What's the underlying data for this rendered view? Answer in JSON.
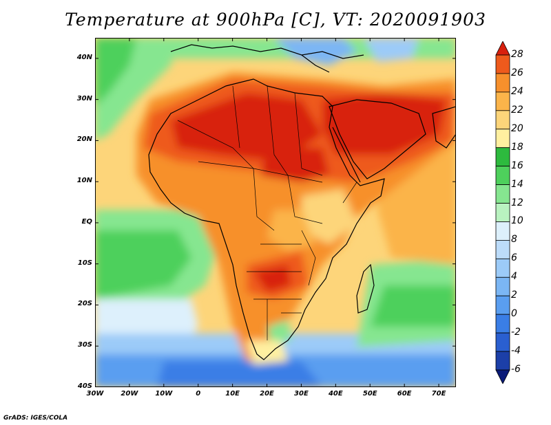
{
  "title": "Temperature at 900hPa [C], VT: 2020091903",
  "credit": "GrADS: IGES/COLA",
  "map": {
    "region": "Africa and surrounding seas",
    "variable": "temperature",
    "level": "900hPa",
    "units": "C",
    "valid_time": "2020091903",
    "lon_range": [
      -30,
      75
    ],
    "lat_range": [
      -40,
      45
    ],
    "lat_ticks": [
      {
        "value": 40,
        "label": "40N"
      },
      {
        "value": 30,
        "label": "30N"
      },
      {
        "value": 20,
        "label": "20N"
      },
      {
        "value": 10,
        "label": "10N"
      },
      {
        "value": 0,
        "label": "EQ"
      },
      {
        "value": -10,
        "label": "10S"
      },
      {
        "value": -20,
        "label": "20S"
      },
      {
        "value": -30,
        "label": "30S"
      },
      {
        "value": -40,
        "label": "40S"
      }
    ],
    "lon_ticks": [
      {
        "value": -30,
        "label": "30W"
      },
      {
        "value": -20,
        "label": "20W"
      },
      {
        "value": -10,
        "label": "10W"
      },
      {
        "value": 0,
        "label": "0"
      },
      {
        "value": 10,
        "label": "10E"
      },
      {
        "value": 20,
        "label": "20E"
      },
      {
        "value": 30,
        "label": "30E"
      },
      {
        "value": 40,
        "label": "40E"
      },
      {
        "value": 50,
        "label": "50E"
      },
      {
        "value": 60,
        "label": "60E"
      },
      {
        "value": 70,
        "label": "70E"
      }
    ]
  },
  "colorbar": {
    "bins": [
      {
        "color": "#0a1a78",
        "min": null,
        "max": -6
      },
      {
        "color": "#1c3fa8",
        "min": -6,
        "max": -4
      },
      {
        "color": "#2a5fd0",
        "min": -4,
        "max": -2
      },
      {
        "color": "#3a7ee6",
        "min": -2,
        "max": 0
      },
      {
        "color": "#5a9ef0",
        "min": 0,
        "max": 2
      },
      {
        "color": "#7bb6f4",
        "min": 2,
        "max": 4
      },
      {
        "color": "#9ccbf8",
        "min": 4,
        "max": 6
      },
      {
        "color": "#bcdcfa",
        "min": 6,
        "max": 8
      },
      {
        "color": "#ddf0fc",
        "min": 8,
        "max": 10
      },
      {
        "color": "#b9f2c0",
        "min": 10,
        "max": 12
      },
      {
        "color": "#86e690",
        "min": 12,
        "max": 14
      },
      {
        "color": "#4ed05c",
        "min": 14,
        "max": 16
      },
      {
        "color": "#2dba3e",
        "min": 16,
        "max": 18
      },
      {
        "color": "#fff0a0",
        "min": 18,
        "max": 20
      },
      {
        "color": "#fdd57a",
        "min": 20,
        "max": 22
      },
      {
        "color": "#fbb44a",
        "min": 22,
        "max": 24
      },
      {
        "color": "#f7902c",
        "min": 24,
        "max": 26
      },
      {
        "color": "#ee5a1c",
        "min": 26,
        "max": 28
      },
      {
        "color": "#d8200e",
        "min": 28,
        "max": null
      }
    ],
    "labels": [
      "28",
      "26",
      "24",
      "22",
      "20",
      "18",
      "16",
      "14",
      "12",
      "10",
      "8",
      "6",
      "4",
      "2",
      "0",
      "-2",
      "-4",
      "-6"
    ]
  }
}
